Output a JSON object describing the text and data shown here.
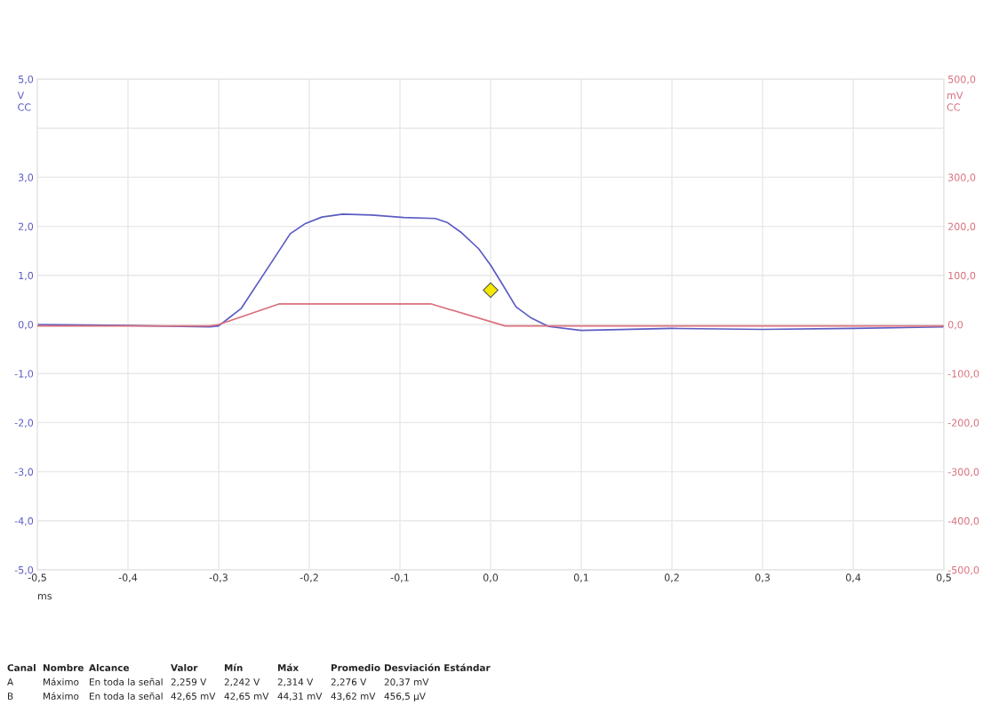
{
  "chart_data": {
    "type": "line",
    "xlabel": "ms",
    "ylabel": "V\nCC",
    "y2label": "mV\nCC",
    "xlim": [
      -0.5,
      0.5
    ],
    "xticks": [
      {
        "value": -0.5,
        "label": "-0,5"
      },
      {
        "value": -0.4,
        "label": "-0,4"
      },
      {
        "value": -0.3,
        "label": "-0,3"
      },
      {
        "value": -0.2,
        "label": "-0,2"
      },
      {
        "value": -0.1,
        "label": "-0,1"
      },
      {
        "value": 0,
        "label": "0,0"
      },
      {
        "value": 0.1,
        "label": "0,1"
      },
      {
        "value": 0.2,
        "label": "0,2"
      },
      {
        "value": 0.3,
        "label": "0,3"
      },
      {
        "value": 0.4,
        "label": "0,4"
      },
      {
        "value": 0.5,
        "label": "0,5"
      }
    ],
    "ylim": [
      -5,
      5
    ],
    "yticks": [
      {
        "value": -5,
        "label": "-5,0"
      },
      {
        "value": -4,
        "label": "-4,0"
      },
      {
        "value": -3,
        "label": "-3,0"
      },
      {
        "value": -2,
        "label": "-2,0"
      },
      {
        "value": -1,
        "label": "-1,0"
      },
      {
        "value": 0,
        "label": "0,0"
      },
      {
        "value": 1,
        "label": "1,0"
      },
      {
        "value": 2,
        "label": "2,0"
      },
      {
        "value": 3,
        "label": "3,0"
      },
      {
        "value": 4,
        "label": null
      },
      {
        "value": 5,
        "label": "5,0"
      }
    ],
    "y2lim": [
      -500,
      500
    ],
    "y2ticks": [
      {
        "value": -500,
        "label": "-500,0"
      },
      {
        "value": -400,
        "label": "-400,0"
      },
      {
        "value": -300,
        "label": "-300,0"
      },
      {
        "value": -200,
        "label": "-200,0"
      },
      {
        "value": -100,
        "label": "-100,0"
      },
      {
        "value": 0,
        "label": "0,0"
      },
      {
        "value": 100,
        "label": "100,0"
      },
      {
        "value": 200,
        "label": "200,0"
      },
      {
        "value": 300,
        "label": "300,0"
      },
      {
        "value": 400,
        "label": null
      },
      {
        "value": 500,
        "label": "500,0"
      }
    ],
    "grid": true,
    "line_style": "solid",
    "series": [
      {
        "color": "#5b5bc4",
        "x": [
          -0.5,
          -0.4,
          -0.31,
          -0.3,
          -0.275,
          -0.243,
          -0.221,
          -0.205,
          -0.186,
          -0.163,
          -0.131,
          -0.096,
          -0.061,
          -0.048,
          -0.032,
          -0.013,
          0.0,
          0.013,
          0.028,
          0.045,
          0.064,
          0.1,
          0.2,
          0.3,
          0.4,
          0.5
        ],
        "values": [
          0.0,
          -0.02,
          -0.05,
          -0.03,
          0.33,
          1.23,
          1.85,
          2.05,
          2.19,
          2.25,
          2.23,
          2.18,
          2.16,
          2.08,
          1.87,
          1.54,
          1.21,
          0.82,
          0.36,
          0.13,
          -0.04,
          -0.12,
          -0.08,
          -0.1,
          -0.08,
          -0.05
        ]
      },
      {
        "color": "#d9707c",
        "axis": "y2",
        "x": [
          -0.5,
          -0.31,
          -0.3,
          -0.233,
          -0.066,
          0.016,
          0.5
        ],
        "values": [
          -3,
          -3,
          0,
          42,
          42,
          -3,
          -3
        ]
      },
      {
        "type": "scatter",
        "marker": "diamond",
        "color": "#f5e800",
        "x": [
          0.0
        ],
        "values": [
          0.7
        ]
      }
    ],
    "annotations": [
      "Canal",
      "Nombre",
      "Alcance",
      "Valor",
      "Mín",
      "Máx",
      "Promedio",
      "Desviación Estándar",
      "A",
      "Máximo",
      "En toda la señal",
      "2,259 V",
      "2,242 V",
      "2,314 V",
      "2,276 V",
      "20,37 mV",
      "B",
      "Máximo",
      "En toda la señal",
      "42,65 mV",
      "42,65 mV",
      "44,31 mV",
      "43,62 mV",
      "456,5 µV"
    ]
  }
}
